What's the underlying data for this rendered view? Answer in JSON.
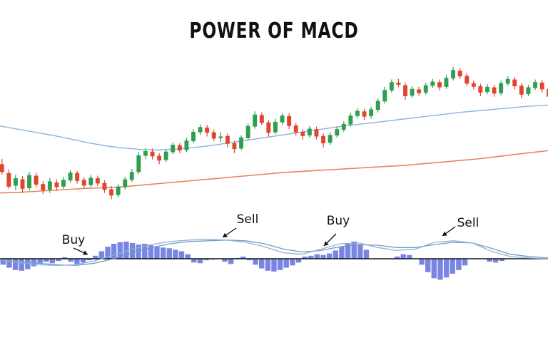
{
  "chart_data": {
    "type": "candlestick",
    "title": "POWER OF MACD",
    "price_panel": {
      "candle_up_color": "#2e9e4f",
      "candle_down_color": "#e0452f",
      "slow_ma_color": "#e8845f",
      "fast_ma_color": "#8fb2d6",
      "candles": [
        [
          74.5,
          73.0,
          75.5,
          72.5
        ],
        [
          72.8,
          70.2,
          73.5,
          69.8
        ],
        [
          70.4,
          71.8,
          72.5,
          69.5
        ],
        [
          71.6,
          69.8,
          72.2,
          69.0
        ],
        [
          69.9,
          72.4,
          73.0,
          69.4
        ],
        [
          72.3,
          70.6,
          72.9,
          70.0
        ],
        [
          70.7,
          69.5,
          71.3,
          68.8
        ],
        [
          69.6,
          71.2,
          71.8,
          69.0
        ],
        [
          71.0,
          70.1,
          71.6,
          69.4
        ],
        [
          70.2,
          71.5,
          72.1,
          69.8
        ],
        [
          71.4,
          72.9,
          73.4,
          71.0
        ],
        [
          72.8,
          71.3,
          73.2,
          70.8
        ],
        [
          71.5,
          70.4,
          72.0,
          69.9
        ],
        [
          70.5,
          71.9,
          72.4,
          70.1
        ],
        [
          71.8,
          70.8,
          72.3,
          70.3
        ],
        [
          70.9,
          69.6,
          71.4,
          69.0
        ],
        [
          69.7,
          68.5,
          70.3,
          67.8
        ],
        [
          68.6,
          70.2,
          70.7,
          68.1
        ],
        [
          70.1,
          71.6,
          72.1,
          69.7
        ],
        [
          71.5,
          73.0,
          73.6,
          71.1
        ],
        [
          73.0,
          76.2,
          76.8,
          72.6
        ],
        [
          76.1,
          77.0,
          77.6,
          75.5
        ],
        [
          76.9,
          76.0,
          77.5,
          75.4
        ],
        [
          76.1,
          75.2,
          76.6,
          74.5
        ],
        [
          75.3,
          76.9,
          77.3,
          74.9
        ],
        [
          76.8,
          78.2,
          78.7,
          76.4
        ],
        [
          78.1,
          77.1,
          78.5,
          76.6
        ],
        [
          77.2,
          79.0,
          79.5,
          76.8
        ],
        [
          78.9,
          80.7,
          81.2,
          78.5
        ],
        [
          80.6,
          81.6,
          82.1,
          80.1
        ],
        [
          81.5,
          80.5,
          82.0,
          79.8
        ],
        [
          80.6,
          79.4,
          81.1,
          78.9
        ],
        [
          79.5,
          79.8,
          80.6,
          78.7
        ],
        [
          79.9,
          78.4,
          80.4,
          77.7
        ],
        [
          78.5,
          77.4,
          79.0,
          76.6
        ],
        [
          77.5,
          79.6,
          80.0,
          77.2
        ],
        [
          79.5,
          81.8,
          82.3,
          79.1
        ],
        [
          81.7,
          84.0,
          84.6,
          81.3
        ],
        [
          83.9,
          82.4,
          84.4,
          82.0
        ],
        [
          82.5,
          80.5,
          82.9,
          79.8
        ],
        [
          80.6,
          82.6,
          83.2,
          80.2
        ],
        [
          82.5,
          83.8,
          84.3,
          82.0
        ],
        [
          83.7,
          81.8,
          84.2,
          81.2
        ],
        [
          81.9,
          80.6,
          82.4,
          80.0
        ],
        [
          80.7,
          79.9,
          81.2,
          79.2
        ],
        [
          80.0,
          81.3,
          81.8,
          79.6
        ],
        [
          81.2,
          79.8,
          81.7,
          79.2
        ],
        [
          79.9,
          78.5,
          80.4,
          77.7
        ],
        [
          78.6,
          80.1,
          80.6,
          78.2
        ],
        [
          80.0,
          81.2,
          81.7,
          79.6
        ],
        [
          81.1,
          82.2,
          82.7,
          80.7
        ],
        [
          82.1,
          83.8,
          84.3,
          81.7
        ],
        [
          83.7,
          84.7,
          85.2,
          83.3
        ],
        [
          84.6,
          83.6,
          85.1,
          83.0
        ],
        [
          83.7,
          85.0,
          85.5,
          83.2
        ],
        [
          84.9,
          86.6,
          87.1,
          84.4
        ],
        [
          86.5,
          88.7,
          89.3,
          86.1
        ],
        [
          88.6,
          90.2,
          90.7,
          88.2
        ],
        [
          90.1,
          89.7,
          90.8,
          89.2
        ],
        [
          89.6,
          87.5,
          90.1,
          86.8
        ],
        [
          87.6,
          88.9,
          89.4,
          87.2
        ],
        [
          88.8,
          88.1,
          89.3,
          87.6
        ],
        [
          88.2,
          89.6,
          90.1,
          87.8
        ],
        [
          89.5,
          90.3,
          90.8,
          89.1
        ],
        [
          90.2,
          89.2,
          90.7,
          88.6
        ],
        [
          89.3,
          91.0,
          91.5,
          88.9
        ],
        [
          90.9,
          92.5,
          93.1,
          90.5
        ],
        [
          92.4,
          91.3,
          92.9,
          90.8
        ],
        [
          91.4,
          89.9,
          91.9,
          89.4
        ],
        [
          90.0,
          89.3,
          90.5,
          88.8
        ],
        [
          89.4,
          88.2,
          89.9,
          87.5
        ],
        [
          88.3,
          89.3,
          89.8,
          87.9
        ],
        [
          89.2,
          88.0,
          89.7,
          87.4
        ],
        [
          88.1,
          90.0,
          90.5,
          87.7
        ],
        [
          89.9,
          90.8,
          91.3,
          89.5
        ],
        [
          90.7,
          89.4,
          91.2,
          88.8
        ],
        [
          89.5,
          87.8,
          90.0,
          87.1
        ],
        [
          87.9,
          89.2,
          89.7,
          87.5
        ],
        [
          89.1,
          90.2,
          90.7,
          88.7
        ],
        [
          90.1,
          88.8,
          90.6,
          88.2
        ],
        [
          88.9,
          87.4,
          89.4,
          86.8
        ]
      ],
      "fast_ma": [
        81.8,
        81.2,
        80.6,
        80.0,
        79.3,
        78.6,
        78.0,
        77.6,
        77.3,
        77.2,
        77.4,
        77.7,
        78.1,
        78.6,
        79.1,
        79.6,
        80.1,
        80.6,
        81.1,
        81.6,
        82.0,
        82.4,
        82.8,
        83.2,
        83.6,
        84.0,
        84.4,
        84.7,
        85.0,
        85.3,
        85.6,
        85.8
      ],
      "slow_ma": [
        69.0,
        69.1,
        69.3,
        69.5,
        69.7,
        69.9,
        70.0,
        70.2,
        70.5,
        70.8,
        71.1,
        71.4,
        71.7,
        72.0,
        72.3,
        72.6,
        72.9,
        73.1,
        73.3,
        73.5,
        73.7,
        73.9,
        74.1,
        74.3,
        74.6,
        74.9,
        75.2,
        75.5,
        75.9,
        76.3,
        76.7,
        77.1
      ]
    },
    "macd_panel": {
      "histogram_color": "#6a78e0",
      "macd_line_color": "#8fb2d6",
      "signal_line_color": "#6f9cc9",
      "histogram": [
        -0.8,
        -1.2,
        -1.5,
        -1.6,
        -1.4,
        -1.0,
        -0.6,
        -0.4,
        -0.6,
        -0.3,
        0.2,
        -0.4,
        -0.7,
        -0.5,
        -0.2,
        0.4,
        1.0,
        1.6,
        2.0,
        2.2,
        2.3,
        2.1,
        1.9,
        2.0,
        1.8,
        1.6,
        1.5,
        1.4,
        1.2,
        1.0,
        0.6,
        -0.5,
        -0.6,
        -0.2,
        -0.1,
        0.0,
        -0.4,
        -0.7,
        0.1,
        0.3,
        -0.2,
        -0.8,
        -1.3,
        -1.6,
        -1.7,
        -1.5,
        -1.2,
        -0.9,
        -0.5,
        0.3,
        0.4,
        0.6,
        0.5,
        0.7,
        1.1,
        1.6,
        2.0,
        2.3,
        1.9,
        1.2,
        0.0,
        0.0,
        0.0,
        0.0,
        0.3,
        0.6,
        0.5,
        0.0,
        -0.8,
        -1.8,
        -2.6,
        -2.8,
        -2.5,
        -2.0,
        -1.5,
        -0.9,
        0.0,
        0.0,
        0.0,
        -0.4,
        -0.5,
        -0.3,
        0.0,
        0.0,
        0.0,
        0.0,
        0.0,
        0.0,
        0.0
      ],
      "macd_line": [
        -0.1,
        -0.5,
        -0.8,
        -0.9,
        -0.8,
        -0.3,
        0.5,
        1.3,
        1.9,
        2.3,
        2.5,
        2.6,
        2.5,
        2.2,
        1.6,
        0.8,
        0.6,
        1.3,
        2.0,
        2.1,
        1.5,
        1.1,
        1.3,
        2.2,
        2.4,
        2.1,
        1.0,
        0.3,
        0.1,
        0.0
      ],
      "signal_line": [
        -0.2,
        -0.4,
        -0.6,
        -0.8,
        -0.9,
        -0.6,
        0.0,
        0.8,
        1.5,
        2.0,
        2.3,
        2.4,
        2.5,
        2.4,
        2.0,
        1.3,
        0.9,
        1.1,
        1.6,
        1.9,
        1.8,
        1.5,
        1.5,
        1.9,
        2.2,
        2.1,
        1.4,
        0.6,
        0.3,
        0.1
      ]
    },
    "annotations": [
      {
        "label": "Buy"
      },
      {
        "label": "Sell"
      },
      {
        "label": "Buy"
      },
      {
        "label": "Sell"
      }
    ]
  }
}
